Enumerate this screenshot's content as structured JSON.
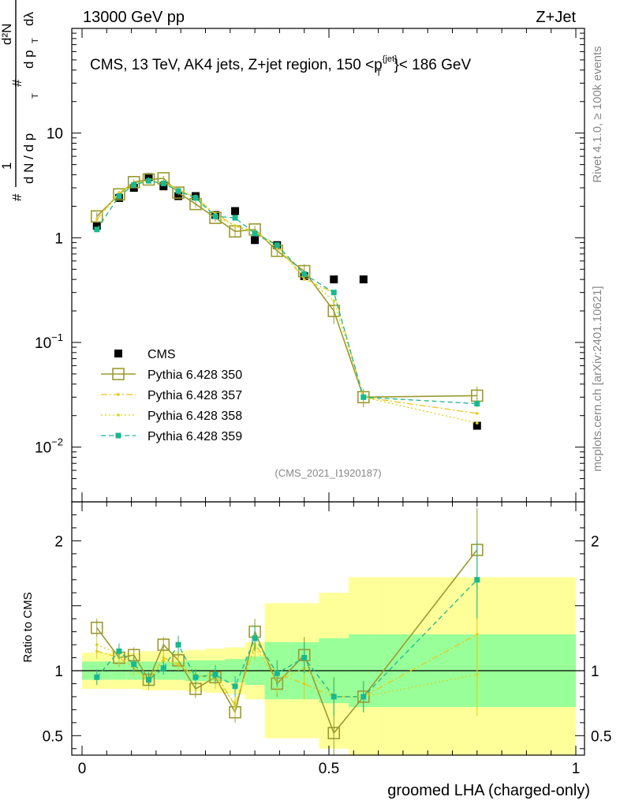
{
  "header": {
    "left": "13000 GeV pp",
    "right": "Z+Jet"
  },
  "side_text": {
    "top": "Rivet 4.1.0, ≥ 100k events",
    "bottom": "mcplots.cern.ch [arXiv:2401.10621]"
  },
  "yaxis_label": {
    "hash1": "#",
    "one": "1",
    "dN": "d N / d p",
    "T": "T",
    "hash2": "#",
    "d2N": "d²N",
    "dpT": "d p",
    "T2": "T",
    "dl": "dλ"
  },
  "ratio_ylabel": "Ratio to CMS",
  "xaxis_label": "groomed LHA (charged-only)",
  "colors": {
    "cms": "#000000",
    "p350": "#9c9a2e",
    "p357": "#e7c81a",
    "p358": "#d8d21a",
    "p359": "#18b890",
    "band_yellow": "#ffff99",
    "band_green": "#99ff99"
  },
  "chart_data": {
    "type": "scatter",
    "title": "CMS, 13 TeV, AK4 jets, Z+jet region, 150 <p",
    "title_sup": "{jet}",
    "title_sub": "T",
    "title_end": "}< 186 GeV",
    "watermark": "(CMS_2021_I1920187)",
    "xlim": [
      0,
      1
    ],
    "ylim_main": [
      0.003,
      100
    ],
    "ylim_ratio": [
      0.35,
      2.3
    ],
    "yscale_main": "log",
    "x_ticks": [
      {
        "v": 0,
        "label": "0"
      },
      {
        "v": 0.5,
        "label": "0.5"
      },
      {
        "v": 1,
        "label": "1"
      }
    ],
    "y_ticks_main": [
      {
        "v": 10,
        "base": "10",
        "exp": ""
      },
      {
        "v": 1,
        "base": "1",
        "exp": ""
      },
      {
        "v": 0.1,
        "base": "10",
        "exp": "−1"
      },
      {
        "v": 0.01,
        "base": "10",
        "exp": "−2"
      }
    ],
    "y_ticks_ratio": [
      {
        "v": 0.5,
        "label": "0.5"
      },
      {
        "v": 1,
        "label": "1"
      },
      {
        "v": 2,
        "label": "2"
      }
    ],
    "bin_edges": [
      0,
      0.06,
      0.09,
      0.12,
      0.15,
      0.18,
      0.21,
      0.25,
      0.29,
      0.33,
      0.37,
      0.42,
      0.48,
      0.54,
      0.6,
      1.0
    ],
    "x": [
      0.03,
      0.075,
      0.105,
      0.135,
      0.165,
      0.195,
      0.23,
      0.27,
      0.31,
      0.35,
      0.395,
      0.45,
      0.51,
      0.57,
      0.8
    ],
    "band_yellow_half": [
      0.14,
      0.14,
      0.14,
      0.15,
      0.15,
      0.15,
      0.16,
      0.17,
      0.18,
      0.22,
      0.52,
      0.52,
      0.6,
      0.72,
      0.72
    ],
    "band_green_half": [
      0.07,
      0.07,
      0.07,
      0.07,
      0.07,
      0.07,
      0.08,
      0.08,
      0.09,
      0.11,
      0.22,
      0.22,
      0.25,
      0.28,
      0.28
    ],
    "series": [
      {
        "name": "CMS",
        "key": "cms",
        "values": [
          1.3,
          2.4,
          3.0,
          3.8,
          3.1,
          2.5,
          2.5,
          1.65,
          1.8,
          0.95,
          0.85,
          0.43,
          0.4,
          0.4,
          0.016
        ]
      },
      {
        "name": "Pythia 6.428 350",
        "key": "p350",
        "values": [
          1.6,
          2.6,
          3.4,
          3.6,
          3.7,
          2.7,
          2.1,
          1.55,
          1.15,
          1.2,
          0.75,
          0.48,
          0.2,
          0.03,
          0.031
        ],
        "err": [
          0.15,
          0.2,
          0.2,
          0.2,
          0.2,
          0.15,
          0.15,
          0.12,
          0.12,
          0.1,
          0.08,
          0.08,
          0.05,
          0.006,
          0.007
        ],
        "ratio": [
          1.33,
          1.1,
          1.12,
          0.93,
          1.2,
          1.08,
          0.86,
          0.95,
          0.68,
          1.3,
          0.9,
          1.12,
          0.52,
          0.8,
          1.93
        ],
        "ratio_err": [
          0.07,
          0.07,
          0.06,
          0.06,
          0.06,
          0.06,
          0.07,
          0.07,
          0.08,
          0.1,
          0.1,
          0.14,
          0.18,
          0.12,
          0.32
        ]
      },
      {
        "name": "Pythia 6.428 357",
        "key": "p357",
        "values": [
          1.5,
          2.7,
          3.3,
          3.5,
          3.4,
          2.9,
          2.4,
          1.7,
          1.3,
          1.15,
          0.85,
          0.4,
          0.3,
          0.03,
          0.021
        ],
        "ratio": [
          1.15,
          1.1,
          1.02,
          0.92,
          1.1,
          1.05,
          0.95,
          0.98,
          0.73,
          1.2,
          0.98,
          0.9,
          0.8,
          0.8,
          1.28
        ],
        "ratio_err": [
          0.06,
          0.06,
          0.06,
          0.05,
          0.05,
          0.05,
          0.06,
          0.07,
          0.08,
          0.1,
          0.1,
          0.12,
          0.15,
          0.12,
          0.4
        ]
      },
      {
        "name": "Pythia 6.428 358",
        "key": "p358",
        "values": [
          1.5,
          2.6,
          3.2,
          3.5,
          3.4,
          2.8,
          2.5,
          1.6,
          1.3,
          1.1,
          0.8,
          0.43,
          0.25,
          0.03,
          0.017
        ],
        "ratio": [
          1.2,
          1.13,
          1.04,
          0.9,
          1.08,
          1.05,
          0.97,
          0.93,
          0.75,
          1.18,
          0.92,
          1.02,
          0.8,
          0.8,
          0.97
        ],
        "ratio_err": [
          0.06,
          0.06,
          0.06,
          0.05,
          0.05,
          0.05,
          0.06,
          0.07,
          0.08,
          0.1,
          0.1,
          0.12,
          0.15,
          0.12,
          0.32
        ]
      },
      {
        "name": "Pythia 6.428 359",
        "key": "p359",
        "values": [
          1.2,
          2.5,
          3.2,
          3.5,
          3.3,
          2.8,
          2.4,
          1.6,
          1.55,
          1.1,
          0.85,
          0.45,
          0.3,
          0.03,
          0.026
        ],
        "ratio": [
          0.95,
          1.15,
          1.05,
          0.93,
          1.02,
          1.2,
          0.95,
          0.97,
          0.88,
          1.25,
          0.98,
          1.1,
          0.8,
          0.8,
          1.7
        ],
        "ratio_err": [
          0.06,
          0.06,
          0.06,
          0.05,
          0.05,
          0.07,
          0.06,
          0.07,
          0.08,
          0.1,
          0.1,
          0.12,
          0.15,
          0.12,
          0.3
        ]
      }
    ]
  }
}
